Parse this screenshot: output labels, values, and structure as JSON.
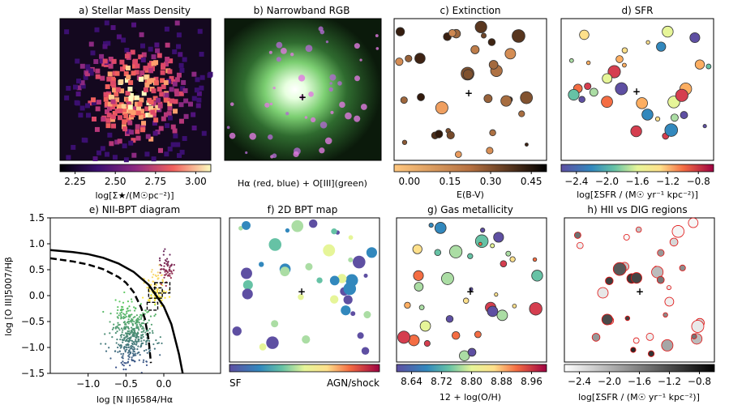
{
  "panels": [
    {
      "id": "a",
      "title": "a) Stellar Mass Density",
      "colorbar": {
        "ticks": [
          "2.25",
          "2.50",
          "2.75",
          "3.00"
        ],
        "label": "log[Σ★/(M☉pc⁻²)]",
        "cmap": "magma"
      }
    },
    {
      "id": "b",
      "title": "b) Narrowband RGB",
      "caption": "Hα (red, blue) + O[III](green)"
    },
    {
      "id": "c",
      "title": "c) Extinction",
      "colorbar": {
        "ticks": [
          "0.00",
          "0.15",
          "0.30",
          "0.45"
        ],
        "label": "E(B-V)",
        "cmap": "copper_r"
      }
    },
    {
      "id": "d",
      "title": "d) SFR",
      "colorbar": {
        "ticks": [
          "−2.4",
          "−2.0",
          "−1.6",
          "−1.2",
          "−0.8"
        ],
        "label": "log[ΣSFR / (M☉ yr⁻¹ kpc⁻²)]",
        "cmap": "spectral_r"
      }
    },
    {
      "id": "e",
      "title": "e) NII-BPT diagram"
    },
    {
      "id": "f",
      "title": "f) 2D BPT map",
      "colorbar": {
        "ticks": [],
        "left_label": "SF",
        "right_label": "AGN/shock",
        "cmap": "spectral_r"
      }
    },
    {
      "id": "g",
      "title": "g) Gas metallicity",
      "colorbar": {
        "ticks": [
          "8.64",
          "8.72",
          "8.80",
          "8.88",
          "8.96"
        ],
        "label": "12 + log(O/H)",
        "cmap": "spectral_r"
      }
    },
    {
      "id": "h",
      "title": "h) HII vs DIG regions",
      "colorbar": {
        "ticks": [
          "−2.4",
          "−2.0",
          "−1.6",
          "−1.2",
          "−0.8"
        ],
        "label": "log[ΣSFR / (M☉ yr⁻¹ kpc⁻²)]",
        "cmap": "greys"
      }
    }
  ],
  "chart_data": {
    "type": "scatter",
    "title": "e) NII-BPT diagram",
    "xlabel": "log [N II]6584/Hα",
    "ylabel": "log [O III]5007/Hβ",
    "xlim": [
      -1.5,
      0.75
    ],
    "ylim": [
      -1.5,
      1.5
    ],
    "xticks": [
      -1.0,
      -0.5,
      0.0
    ],
    "yticks": [
      -1.5,
      -1.0,
      -0.5,
      0.0,
      0.5,
      1.0,
      1.5
    ],
    "curves": [
      {
        "style": "solid",
        "x": [
          -1.5,
          -1.2,
          -1.0,
          -0.8,
          -0.6,
          -0.4,
          -0.2,
          0.0,
          0.1,
          0.2,
          0.25
        ],
        "y": [
          0.88,
          0.84,
          0.8,
          0.73,
          0.62,
          0.46,
          0.21,
          -0.21,
          -0.55,
          -1.13,
          -1.5
        ]
      },
      {
        "style": "dashed",
        "x": [
          -1.5,
          -1.2,
          -1.0,
          -0.8,
          -0.6,
          -0.5,
          -0.4,
          -0.3,
          -0.25,
          -0.2,
          -0.17
        ],
        "y": [
          0.72,
          0.66,
          0.6,
          0.51,
          0.36,
          0.25,
          0.07,
          -0.23,
          -0.45,
          -0.85,
          -1.3
        ]
      }
    ],
    "clouds": [
      {
        "name": "",
        "cx": -0.42,
        "cy": -0.75,
        "sx": 0.13,
        "sy": 0.3,
        "n": 420,
        "color_min": "#3b528b",
        "color_max": "#5ec962"
      },
      {
        "name": "",
        "cx": -0.1,
        "cy": 0.15,
        "sx": 0.08,
        "sy": 0.15,
        "n": 90,
        "color_min": "#fde725",
        "color_max": "#f8d777"
      },
      {
        "name": "",
        "cx": 0.05,
        "cy": 0.5,
        "sx": 0.05,
        "sy": 0.15,
        "n": 60,
        "color_min": "#a8344c",
        "color_max": "#6b2a5e"
      }
    ],
    "boxes": [
      {
        "x": -0.2,
        "y": -0.05,
        "w": 0.18,
        "h": 0.2
      },
      {
        "x": -0.12,
        "y": 0.05,
        "w": 0.2,
        "h": 0.2
      },
      {
        "x": -0.22,
        "y": -0.28,
        "w": 0.14,
        "h": 0.15
      }
    ]
  }
}
